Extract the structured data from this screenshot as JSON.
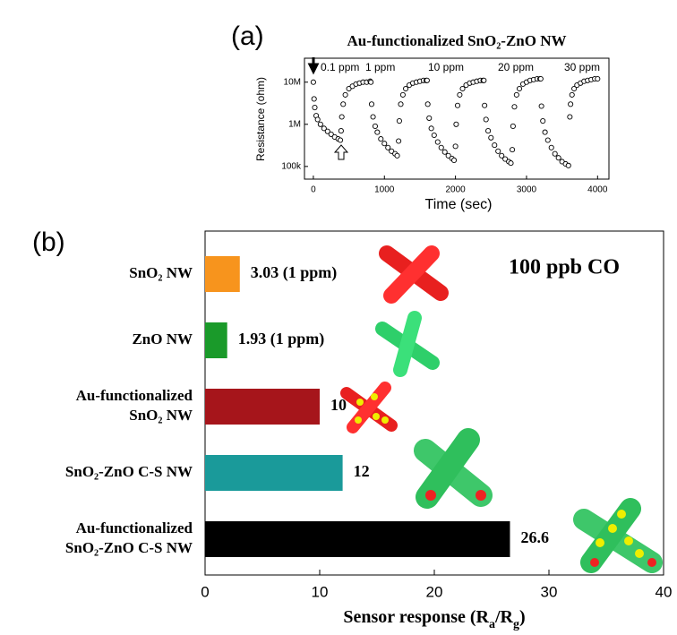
{
  "chart_data": [
    {
      "type": "scatter",
      "panel_label": "(a)",
      "title": "Au-functionalized SnO₂-ZnO NW",
      "xlabel": "Time (sec)",
      "ylabel": "Resistance (ohm)",
      "log_y": true,
      "color": "#000000",
      "xlim": [
        -125,
        4160
      ],
      "xticks": [
        0,
        1000,
        2000,
        3000,
        4000
      ],
      "ylim": [
        50000,
        37000000
      ],
      "yticks": [
        {
          "value": 100000,
          "label": "100k"
        },
        {
          "value": 1000000,
          "label": "1M"
        },
        {
          "value": 10000000,
          "label": "10M"
        }
      ],
      "annotations": [
        "0.1 ppm",
        "1 ppm",
        "10 ppm",
        "20 ppm",
        "30 ppm"
      ],
      "x": [
        0,
        10,
        20,
        40,
        60,
        100,
        150,
        200,
        250,
        300,
        350,
        380,
        390,
        400,
        420,
        450,
        500,
        550,
        600,
        650,
        700,
        750,
        800,
        810,
        820,
        840,
        870,
        900,
        950,
        1000,
        1050,
        1100,
        1150,
        1180,
        1200,
        1210,
        1230,
        1260,
        1300,
        1350,
        1400,
        1450,
        1500,
        1550,
        1590,
        1600,
        1610,
        1630,
        1660,
        1700,
        1750,
        1800,
        1850,
        1900,
        1950,
        1980,
        2000,
        2010,
        2030,
        2060,
        2100,
        2150,
        2200,
        2250,
        2300,
        2350,
        2390,
        2400,
        2410,
        2430,
        2460,
        2500,
        2550,
        2600,
        2650,
        2700,
        2750,
        2780,
        2800,
        2810,
        2830,
        2860,
        2900,
        2950,
        3000,
        3050,
        3100,
        3150,
        3190,
        3200,
        3210,
        3230,
        3260,
        3300,
        3350,
        3400,
        3450,
        3500,
        3550,
        3590,
        3610,
        3620,
        3640,
        3670,
        3710,
        3760,
        3810,
        3860,
        3910,
        3960,
        4000
      ],
      "y": [
        10000000,
        4000000,
        2500000,
        1600000,
        1300000,
        1000000,
        800000,
        680000,
        580000,
        500000,
        450000,
        420000,
        700000,
        1500000,
        3000000,
        5000000,
        7000000,
        8000000,
        9000000,
        9500000,
        10000000,
        10000000,
        10500000,
        10000000,
        3000000,
        1500000,
        900000,
        650000,
        450000,
        350000,
        280000,
        230000,
        200000,
        180000,
        400000,
        1200000,
        3000000,
        5000000,
        7000000,
        8500000,
        9500000,
        10000000,
        10500000,
        11000000,
        11000000,
        11000000,
        3000000,
        1400000,
        800000,
        550000,
        380000,
        280000,
        220000,
        180000,
        155000,
        140000,
        300000,
        1000000,
        2800000,
        5000000,
        7000000,
        8500000,
        9500000,
        10000000,
        10500000,
        11000000,
        11000000,
        11000000,
        2800000,
        1300000,
        700000,
        480000,
        320000,
        230000,
        180000,
        150000,
        130000,
        120000,
        250000,
        900000,
        2600000,
        5000000,
        7000000,
        9000000,
        10000000,
        11000000,
        11500000,
        12000000,
        12000000,
        12000000,
        2700000,
        1200000,
        650000,
        420000,
        280000,
        200000,
        160000,
        130000,
        115000,
        105000,
        1500000,
        3000000,
        5000000,
        7000000,
        8500000,
        9500000,
        10500000,
        11000000,
        11500000,
        12000000,
        12000000
      ]
    },
    {
      "type": "hbar",
      "panel_label": "(b)",
      "annotation": "100 ppb CO",
      "xlabel": [
        "Sensor response (R",
        "a",
        "/R",
        "g",
        ")"
      ],
      "categories": [
        "SnO₂ NW",
        "ZnO NW",
        "Au-functionalized\nSnO₂ NW",
        "SnO₂-ZnO C-S NW",
        "Au-functionalized\nSnO₂-ZnO C-S NW"
      ],
      "values": [
        3.03,
        1.93,
        10,
        12,
        26.6
      ],
      "value_labels": [
        "3.03 (1 ppm)",
        "1.93 (1 ppm)",
        "10",
        "12",
        "26.6"
      ],
      "colors": [
        "#f7941d",
        "#1a9a2a",
        "#a6151b",
        "#1a9a9a",
        "#000000"
      ],
      "xlim": [
        0,
        40
      ],
      "xticks": [
        0,
        10,
        20,
        30,
        40
      ]
    }
  ]
}
